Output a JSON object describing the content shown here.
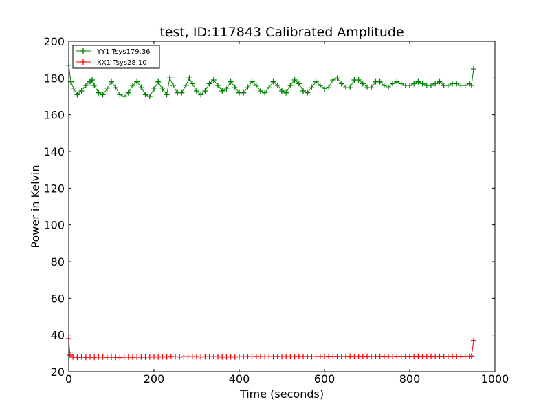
{
  "chart_data": {
    "type": "line",
    "title": "test, ID:117843 Calibrated Amplitude",
    "xlabel": "Time (seconds)",
    "ylabel": "Power in Kelvin",
    "xlim": [
      0,
      1000
    ],
    "ylim": [
      20,
      200
    ],
    "xticks": [
      0,
      200,
      400,
      600,
      800,
      1000
    ],
    "yticks": [
      20,
      40,
      60,
      80,
      100,
      120,
      140,
      160,
      180,
      200
    ],
    "grid": false,
    "legend_position": "top-left",
    "marker": "+",
    "series": [
      {
        "name": "YY1 Tsys179.36",
        "color": "#008000",
        "x": [
          0,
          5,
          12,
          20,
          30,
          40,
          50,
          55,
          60,
          70,
          80,
          90,
          100,
          110,
          120,
          130,
          140,
          150,
          160,
          170,
          180,
          190,
          200,
          210,
          220,
          230,
          237,
          245,
          255,
          265,
          275,
          283,
          290,
          300,
          310,
          320,
          330,
          340,
          350,
          360,
          370,
          380,
          390,
          400,
          410,
          420,
          430,
          440,
          450,
          460,
          470,
          480,
          490,
          500,
          510,
          520,
          530,
          540,
          550,
          560,
          570,
          580,
          590,
          600,
          610,
          620,
          630,
          640,
          650,
          660,
          670,
          680,
          690,
          700,
          710,
          720,
          730,
          740,
          750,
          760,
          770,
          780,
          790,
          800,
          810,
          820,
          830,
          840,
          850,
          860,
          870,
          880,
          890,
          900,
          910,
          920,
          930,
          940,
          945,
          950
        ],
        "values": [
          187,
          178,
          174,
          171,
          173,
          176,
          178,
          179,
          176,
          172,
          171,
          174,
          178,
          175,
          171,
          170,
          172,
          176,
          178,
          175,
          171,
          170,
          174,
          178,
          174,
          171,
          180,
          176,
          172,
          172,
          176,
          180,
          177,
          173,
          171,
          173,
          177,
          179,
          176,
          173,
          174,
          178,
          175,
          172,
          172,
          175,
          178,
          176,
          173,
          172,
          175,
          178,
          176,
          173,
          172,
          176,
          179,
          177,
          173,
          172,
          175,
          178,
          176,
          174,
          175,
          179,
          180,
          177,
          175,
          175,
          179,
          179,
          177,
          175,
          175,
          178,
          178,
          176,
          175,
          177,
          178,
          177,
          176,
          176,
          177,
          178,
          177,
          176,
          176,
          177,
          178,
          176,
          176,
          177,
          177,
          176,
          176,
          177,
          176,
          185
        ]
      },
      {
        "name": "XX1 Tsys28.10",
        "color": "#ff0000",
        "x": [
          0,
          3,
          10,
          20,
          30,
          40,
          50,
          60,
          70,
          80,
          90,
          100,
          110,
          120,
          130,
          140,
          150,
          160,
          170,
          180,
          190,
          200,
          210,
          220,
          230,
          240,
          250,
          260,
          270,
          280,
          290,
          300,
          310,
          320,
          330,
          340,
          350,
          360,
          370,
          380,
          390,
          400,
          410,
          420,
          430,
          440,
          450,
          460,
          470,
          480,
          490,
          500,
          510,
          520,
          530,
          540,
          550,
          560,
          570,
          580,
          590,
          600,
          610,
          620,
          630,
          640,
          650,
          660,
          670,
          680,
          690,
          700,
          710,
          720,
          730,
          740,
          750,
          760,
          770,
          780,
          790,
          800,
          810,
          820,
          830,
          840,
          850,
          860,
          870,
          880,
          890,
          900,
          910,
          920,
          930,
          940,
          945,
          950
        ],
        "values": [
          38,
          29,
          28,
          27.8,
          28,
          27.8,
          28,
          27.8,
          28,
          28,
          27.8,
          27.9,
          27.8,
          27.7,
          27.9,
          28,
          27.8,
          27.9,
          28,
          27.9,
          28,
          28.1,
          28,
          28.1,
          28,
          28.3,
          28.1,
          28,
          28.2,
          28.2,
          28.1,
          28.2,
          28,
          28.1,
          28.1,
          28.2,
          28.1,
          28,
          28,
          28.1,
          28,
          28.1,
          28.1,
          28.2,
          28.1,
          28.3,
          28.2,
          28.1,
          28.2,
          28.1,
          28.3,
          28.1,
          28.2,
          28.2,
          28.1,
          28.3,
          28.2,
          28.3,
          28.1,
          28.2,
          28.3,
          28.2,
          28.4,
          28.3,
          28.3,
          28.2,
          28.3,
          28.4,
          28.2,
          28.3,
          28.3,
          28.4,
          28.2,
          28.3,
          28.3,
          28.4,
          28.3,
          28.2,
          28.4,
          28.3,
          28.3,
          28.4,
          28.3,
          28.4,
          28.3,
          28.3,
          28.4,
          28.3,
          28.4,
          28.3,
          28.3,
          28.4,
          28.3,
          28.4,
          28.3,
          28.3,
          28.5,
          37
        ]
      }
    ]
  }
}
